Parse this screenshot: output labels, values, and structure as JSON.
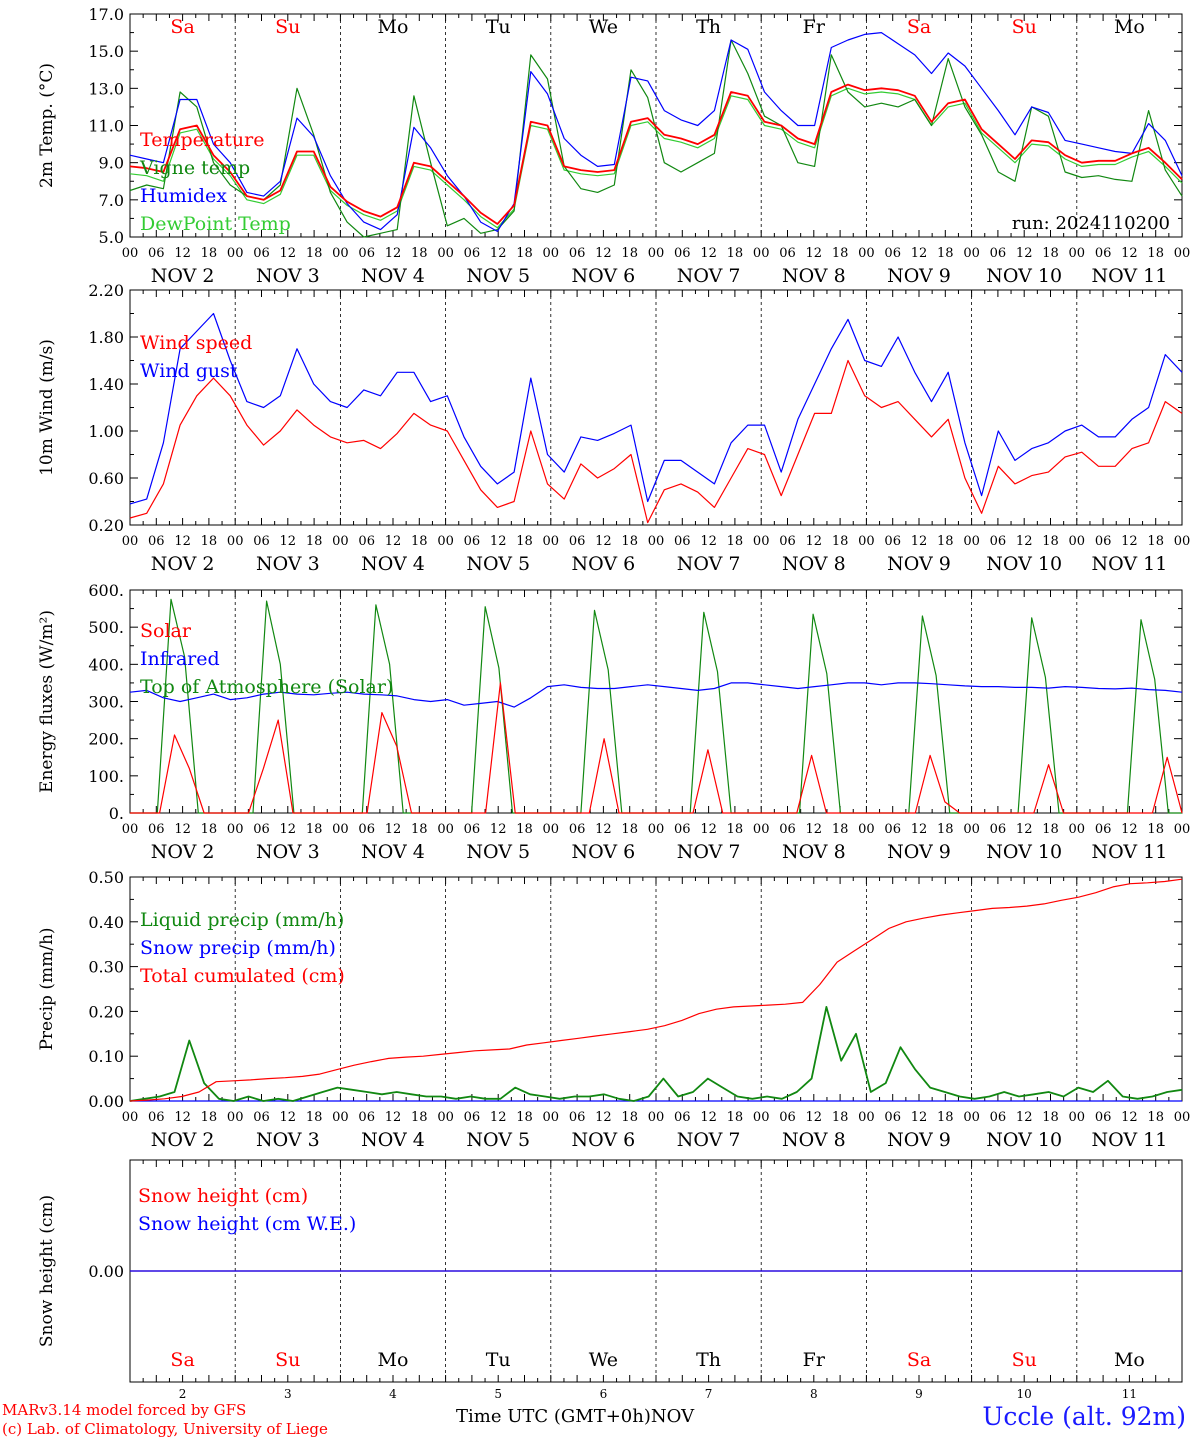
{
  "colors": {
    "temperature": "#ff0000",
    "vigne_temp": "#118811",
    "humidex": "#0000ff",
    "dewpoint": "#33cc33",
    "wind_speed": "#ff0000",
    "wind_gust": "#0000ff",
    "solar": "#ff0000",
    "infrared": "#0000ff",
    "toa": "#118811",
    "liquid": "#118811",
    "snow": "#0000ff",
    "cumulated": "#ff0000",
    "snow_height": "#ff0000",
    "snow_we": "#0000ff",
    "weekend": "#ff0000",
    "weekday": "#000000"
  },
  "footer": {
    "model_line1": "MARv3.14 model forced by GFS",
    "model_line2": "(c) Lab. of Climatology, University of Liege",
    "time_label": "Time UTC (GMT+0h)",
    "month": "NOV",
    "station": "Uccle (alt. 92m)"
  },
  "chart_data": [
    {
      "type": "line",
      "ylabel": "2m Temp. (°C)",
      "ylim": [
        5.0,
        17.0
      ],
      "ytick_labels": [
        "5.0",
        "7.0",
        "9.0",
        "11.0",
        "13.0",
        "15.0",
        "17.0"
      ],
      "x_axis": "3-hourly time steps, 2 Nov 2024 00 UTC to 12 Nov 2024 00 UTC",
      "day_names": [
        "Sa",
        "Su",
        "Mo",
        "Tu",
        "We",
        "Th",
        "Fr",
        "Sa",
        "Su",
        "Mo"
      ],
      "run_label": "run: 2024110200",
      "legend": [
        "Temperature",
        "Vigne temp",
        "Humidex",
        "DewPoint Temp"
      ],
      "series": [
        {
          "name": "Temperature",
          "values": [
            8.8,
            8.7,
            8.5,
            10.8,
            11.0,
            9.4,
            8.5,
            7.2,
            7.0,
            7.5,
            9.6,
            9.6,
            7.7,
            6.9,
            6.4,
            6.1,
            6.6,
            9.0,
            8.8,
            8.0,
            7.2,
            6.3,
            5.7,
            6.7,
            11.2,
            11.0,
            8.8,
            8.6,
            8.5,
            8.6,
            11.2,
            11.4,
            10.5,
            10.3,
            10.0,
            10.5,
            12.8,
            12.6,
            11.2,
            11.0,
            10.3,
            10.0,
            12.8,
            13.2,
            12.9,
            13.0,
            12.9,
            12.6,
            11.2,
            12.2,
            12.4,
            10.8,
            10.0,
            9.2,
            10.2,
            10.1,
            9.4,
            9.0,
            9.1,
            9.1,
            9.5,
            9.8,
            9.0,
            8.1
          ]
        },
        {
          "name": "Vigne temp",
          "values": [
            7.5,
            7.8,
            7.6,
            12.8,
            12.0,
            9.0,
            7.8,
            7.2,
            7.0,
            7.8,
            13.0,
            10.5,
            7.4,
            5.8,
            5.0,
            5.2,
            5.4,
            12.6,
            9.0,
            5.6,
            6.0,
            5.2,
            5.4,
            6.4,
            14.8,
            13.5,
            8.8,
            7.6,
            7.4,
            7.8,
            14.0,
            12.5,
            9.0,
            8.5,
            9.0,
            9.5,
            15.6,
            13.8,
            11.5,
            11.0,
            9.0,
            8.8,
            14.8,
            12.8,
            12.0,
            12.2,
            12.0,
            12.4,
            11.0,
            14.6,
            12.0,
            10.5,
            8.5,
            8.0,
            12.0,
            11.5,
            8.5,
            8.2,
            8.3,
            8.1,
            8.0,
            11.8,
            8.6,
            7.2
          ]
        },
        {
          "name": "Humidex",
          "values": [
            9.4,
            9.2,
            9.0,
            12.4,
            12.4,
            10.0,
            9.0,
            7.4,
            7.2,
            8.0,
            11.4,
            10.4,
            8.3,
            6.8,
            5.8,
            5.4,
            6.2,
            10.9,
            9.8,
            8.3,
            7.2,
            5.8,
            5.3,
            6.8,
            13.9,
            12.7,
            10.3,
            9.4,
            8.8,
            8.9,
            13.6,
            13.4,
            11.8,
            11.3,
            11.0,
            11.8,
            15.6,
            15.1,
            12.8,
            11.8,
            11.0,
            11.0,
            15.2,
            15.6,
            15.9,
            16.0,
            15.4,
            14.8,
            13.8,
            14.9,
            14.2,
            13.0,
            11.8,
            10.5,
            12.0,
            11.7,
            10.2,
            10.0,
            9.8,
            9.6,
            9.5,
            11.1,
            10.2,
            8.3
          ]
        },
        {
          "name": "DewPoint Temp",
          "values": [
            8.4,
            8.3,
            8.0,
            10.6,
            10.8,
            9.2,
            8.3,
            7.0,
            6.8,
            7.3,
            9.4,
            9.4,
            7.5,
            6.7,
            6.2,
            5.9,
            6.4,
            8.8,
            8.6,
            7.8,
            7.0,
            6.1,
            5.5,
            6.5,
            11.0,
            10.8,
            8.6,
            8.4,
            8.3,
            8.4,
            11.0,
            11.2,
            10.3,
            10.1,
            9.8,
            10.3,
            12.6,
            12.4,
            11.0,
            10.8,
            10.1,
            9.8,
            12.6,
            13.0,
            12.7,
            12.8,
            12.7,
            12.4,
            11.0,
            12.0,
            12.2,
            10.6,
            9.8,
            9.0,
            10.0,
            9.9,
            9.2,
            8.8,
            8.9,
            8.9,
            9.3,
            9.6,
            8.8,
            7.9
          ]
        }
      ]
    },
    {
      "type": "line",
      "ylabel": "10m Wind (m/s)",
      "ylim": [
        0.2,
        2.2
      ],
      "ytick_labels": [
        "0.20",
        "0.60",
        "1.00",
        "1.40",
        "1.80",
        "2.20"
      ],
      "legend": [
        "Wind speed",
        "Wind gust"
      ],
      "series": [
        {
          "name": "Wind speed",
          "values": [
            0.26,
            0.3,
            0.55,
            1.05,
            1.3,
            1.45,
            1.3,
            1.05,
            0.88,
            1.0,
            1.18,
            1.05,
            0.95,
            0.9,
            0.92,
            0.85,
            0.98,
            1.15,
            1.05,
            1.0,
            0.75,
            0.5,
            0.35,
            0.4,
            1.0,
            0.55,
            0.42,
            0.72,
            0.6,
            0.68,
            0.8,
            0.22,
            0.5,
            0.55,
            0.48,
            0.35,
            0.6,
            0.85,
            0.8,
            0.45,
            0.8,
            1.15,
            1.15,
            1.6,
            1.3,
            1.2,
            1.25,
            1.1,
            0.95,
            1.1,
            0.6,
            0.3,
            0.7,
            0.55,
            0.62,
            0.65,
            0.78,
            0.82,
            0.7,
            0.7,
            0.85,
            0.9,
            1.25,
            1.15
          ]
        },
        {
          "name": "Wind gust",
          "values": [
            0.38,
            0.42,
            0.9,
            1.7,
            1.85,
            2.0,
            1.6,
            1.25,
            1.2,
            1.3,
            1.7,
            1.4,
            1.25,
            1.2,
            1.35,
            1.3,
            1.5,
            1.5,
            1.25,
            1.3,
            0.95,
            0.7,
            0.55,
            0.65,
            1.45,
            0.8,
            0.65,
            0.95,
            0.92,
            0.98,
            1.05,
            0.4,
            0.75,
            0.75,
            0.65,
            0.55,
            0.9,
            1.05,
            1.05,
            0.65,
            1.1,
            1.4,
            1.7,
            1.95,
            1.6,
            1.55,
            1.8,
            1.5,
            1.25,
            1.5,
            0.9,
            0.45,
            1.0,
            0.75,
            0.85,
            0.9,
            1.0,
            1.05,
            0.95,
            0.95,
            1.1,
            1.2,
            1.65,
            1.5
          ]
        }
      ]
    },
    {
      "type": "line",
      "ylabel": "Energy fluxes (W/m²)",
      "ylim": [
        0,
        600
      ],
      "ytick_labels": [
        "0.",
        "100.",
        "200.",
        "300.",
        "400.",
        "500.",
        "600."
      ],
      "legend": [
        "Solar",
        "Infrared",
        "Top of Atmosphere (Solar)"
      ],
      "series": [
        {
          "name": "Solar",
          "values": [
            0,
            0,
            0,
            210,
            120,
            0,
            0,
            0,
            0,
            120,
            250,
            0,
            0,
            0,
            0,
            0,
            0,
            270,
            180,
            0,
            0,
            0,
            0,
            0,
            0,
            350,
            0,
            0,
            0,
            0,
            0,
            0,
            200,
            0,
            0,
            0,
            0,
            0,
            0,
            170,
            0,
            0,
            0,
            0,
            0,
            0,
            155,
            0,
            0,
            0,
            0,
            0,
            0,
            0,
            155,
            30,
            0,
            0,
            0,
            0,
            0,
            0,
            130,
            0,
            0,
            0,
            0,
            0,
            0,
            0,
            150,
            0
          ]
        },
        {
          "name": "Infrared",
          "values": [
            325,
            330,
            310,
            300,
            310,
            320,
            305,
            310,
            320,
            325,
            320,
            318,
            322,
            325,
            320,
            318,
            315,
            305,
            300,
            305,
            290,
            295,
            300,
            285,
            310,
            340,
            345,
            338,
            335,
            335,
            340,
            345,
            340,
            335,
            330,
            335,
            350,
            350,
            345,
            340,
            335,
            340,
            345,
            350,
            350,
            345,
            350,
            350,
            348,
            345,
            342,
            340,
            340,
            338,
            338,
            336,
            340,
            338,
            335,
            334,
            336,
            332,
            330,
            325
          ]
        },
        {
          "name": "Top of Atmosphere (Solar)",
          "values": [
            0,
            0,
            0,
            575,
            420,
            0,
            0,
            0,
            0,
            0,
            570,
            400,
            0,
            0,
            0,
            0,
            0,
            0,
            560,
            400,
            0,
            0,
            0,
            0,
            0,
            0,
            555,
            390,
            0,
            0,
            0,
            0,
            0,
            0,
            545,
            385,
            0,
            0,
            0,
            0,
            0,
            0,
            540,
            380,
            0,
            0,
            0,
            0,
            0,
            0,
            535,
            375,
            0,
            0,
            0,
            0,
            0,
            0,
            530,
            370,
            0,
            0,
            0,
            0,
            0,
            0,
            525,
            365,
            0,
            0,
            0,
            0,
            0,
            0,
            520,
            360,
            0,
            0
          ]
        }
      ]
    },
    {
      "type": "line",
      "ylabel": "Precip (mm/h)",
      "ylim": [
        0.0,
        0.5
      ],
      "ytick_labels": [
        "0.00",
        "0.10",
        "0.20",
        "0.30",
        "0.40",
        "0.50"
      ],
      "legend": [
        "Liquid precip (mm/h)",
        "Snow precip (mm/h)",
        "Total cumulated (cm)"
      ],
      "series": [
        {
          "name": "Liquid precip (mm/h)",
          "values": [
            0.0,
            0.005,
            0.01,
            0.02,
            0.135,
            0.04,
            0.005,
            0.0,
            0.01,
            0.0,
            0.005,
            0.0,
            0.01,
            0.02,
            0.03,
            0.025,
            0.02,
            0.015,
            0.02,
            0.015,
            0.01,
            0.01,
            0.005,
            0.01,
            0.005,
            0.005,
            0.03,
            0.015,
            0.01,
            0.005,
            0.01,
            0.01,
            0.015,
            0.005,
            0.0,
            0.01,
            0.05,
            0.01,
            0.02,
            0.05,
            0.03,
            0.01,
            0.005,
            0.01,
            0.005,
            0.02,
            0.05,
            0.21,
            0.09,
            0.15,
            0.02,
            0.04,
            0.12,
            0.07,
            0.03,
            0.02,
            0.01,
            0.005,
            0.01,
            0.02,
            0.01,
            0.015,
            0.02,
            0.01,
            0.03,
            0.02,
            0.045,
            0.01,
            0.005,
            0.01,
            0.02,
            0.025
          ]
        },
        {
          "name": "Snow precip (mm/h)",
          "values": [
            0,
            0,
            0,
            0,
            0,
            0,
            0,
            0,
            0,
            0,
            0,
            0,
            0,
            0,
            0,
            0,
            0,
            0,
            0,
            0,
            0,
            0,
            0,
            0,
            0,
            0,
            0,
            0,
            0,
            0,
            0,
            0,
            0,
            0,
            0,
            0,
            0,
            0,
            0,
            0,
            0,
            0,
            0,
            0,
            0,
            0,
            0,
            0,
            0,
            0,
            0,
            0,
            0,
            0,
            0,
            0,
            0,
            0,
            0,
            0,
            0,
            0,
            0,
            0,
            0,
            0,
            0,
            0,
            0,
            0,
            0,
            0
          ]
        },
        {
          "name": "Total cumulated (cm)",
          "values": [
            0.0,
            0.002,
            0.005,
            0.01,
            0.02,
            0.043,
            0.045,
            0.047,
            0.05,
            0.052,
            0.055,
            0.06,
            0.07,
            0.08,
            0.088,
            0.095,
            0.098,
            0.1,
            0.104,
            0.108,
            0.112,
            0.114,
            0.116,
            0.125,
            0.13,
            0.135,
            0.14,
            0.145,
            0.15,
            0.155,
            0.16,
            0.168,
            0.18,
            0.195,
            0.205,
            0.21,
            0.212,
            0.214,
            0.216,
            0.22,
            0.26,
            0.31,
            0.335,
            0.36,
            0.385,
            0.4,
            0.408,
            0.415,
            0.42,
            0.425,
            0.43,
            0.432,
            0.435,
            0.44,
            0.448,
            0.455,
            0.465,
            0.478,
            0.485,
            0.487,
            0.49,
            0.495
          ]
        }
      ]
    },
    {
      "type": "line",
      "ylabel": "Snow height (cm)",
      "ytick_labels": [
        "0.00"
      ],
      "legend": [
        "Snow height (cm)",
        "Snow height (cm W.E.)"
      ],
      "day_names": [
        "Sa",
        "Su",
        "Mo",
        "Tu",
        "We",
        "Th",
        "Fr",
        "Sa",
        "Su",
        "Mo"
      ],
      "day_numbers": [
        "2",
        "3",
        "4",
        "5",
        "6",
        "7",
        "8",
        "9",
        "10",
        "11"
      ],
      "series": [
        {
          "name": "Snow height (cm)",
          "values": [
            0,
            0
          ]
        },
        {
          "name": "Snow height (cm W.E.)",
          "values": [
            0,
            0
          ]
        }
      ]
    }
  ]
}
